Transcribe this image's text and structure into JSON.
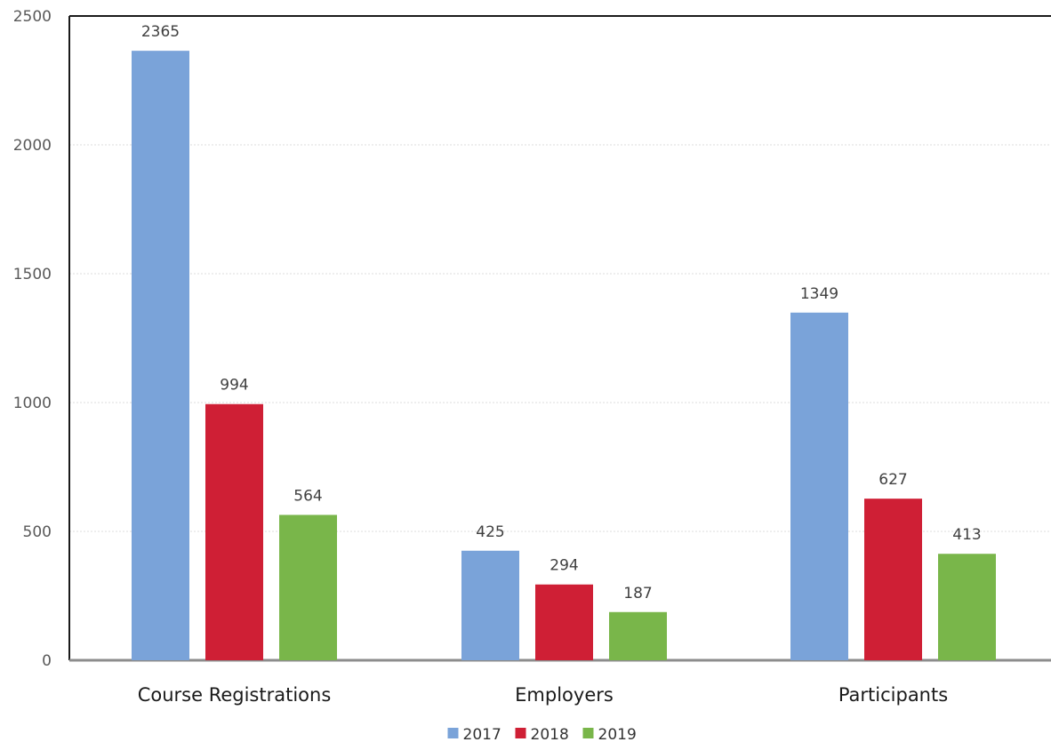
{
  "chart_data": {
    "type": "bar",
    "categories": [
      "Course Registrations",
      "Employers",
      "Participants"
    ],
    "series": [
      {
        "name": "2017",
        "color": "#7aa3d9",
        "values": [
          2365,
          425,
          1349
        ]
      },
      {
        "name": "2018",
        "color": "#cf1f35",
        "values": [
          994,
          294,
          627
        ]
      },
      {
        "name": "2019",
        "color": "#79b64a",
        "values": [
          564,
          187,
          413
        ]
      }
    ],
    "yticks": [
      0,
      500,
      1000,
      1500,
      2000,
      2500
    ],
    "ylim": [
      0,
      2500
    ],
    "grid": true,
    "legend_position": "bottom"
  }
}
